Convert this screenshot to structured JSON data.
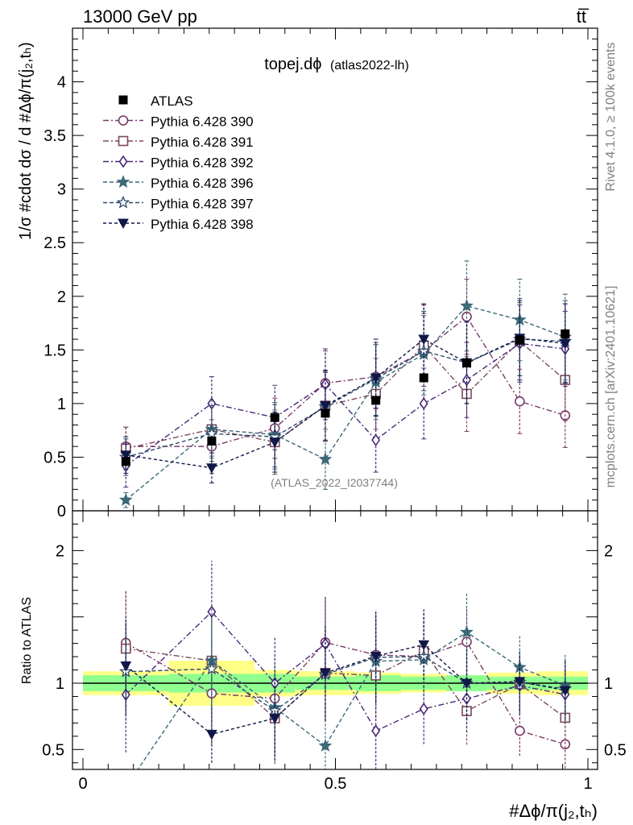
{
  "header": {
    "energy_label": "13000 GeV pp",
    "process_label": "tt̅"
  },
  "main_panel": {
    "title": "topej.dϕ",
    "title_tag": "(atlas2022-lh)",
    "ylabel": "1/σ #cdot dσ / d #Δϕ/π(j₂,tₕ)",
    "analysis_label": "(ATLAS_2022_I2037744)"
  },
  "ratio_panel": {
    "ylabel": "Ratio to ATLAS"
  },
  "xlabel": "#Δϕ/π(j₂,tₕ)",
  "side_labels": {
    "rivet": "Rivet 4.1.0, ≥ 100k events",
    "mcplots": "mcplots.cern.ch [arXiv:2401.10621]"
  },
  "colors": {
    "data": "#000000",
    "band_inner": "#8fff8f",
    "band_outer": "#ffff88",
    "s390": "#7a3a68",
    "s391": "#7a4a5a",
    "s392": "#4a2878",
    "s396": "#3c6878",
    "s397": "#2c4a6a",
    "s398": "#101848"
  },
  "chart_data": {
    "type": "scatter",
    "x_range": [
      0,
      1
    ],
    "main_ylim": [
      0,
      4.5
    ],
    "ratio_ylim": [
      0.35,
      2.3
    ],
    "main_yticks": [
      "0",
      "0.5",
      "1",
      "1.5",
      "2",
      "2.5",
      "3",
      "3.5",
      "4"
    ],
    "ratio_yticks": [
      "0.5",
      "1",
      "2"
    ],
    "xticks": [
      "0",
      "0.5",
      "1"
    ],
    "x": [
      0.085,
      0.255,
      0.38,
      0.48,
      0.58,
      0.675,
      0.76,
      0.865,
      0.955
    ],
    "bin_edges": [
      0,
      0.17,
      0.34,
      0.42,
      0.54,
      0.63,
      0.72,
      0.8,
      0.9,
      1.0
    ],
    "data": {
      "name": "ATLAS",
      "values": [
        0.46,
        0.65,
        0.87,
        0.91,
        1.03,
        1.24,
        1.38,
        1.59,
        1.65
      ],
      "errors": [
        0.02,
        0.03,
        0.03,
        0.04,
        0.04,
        0.04,
        0.05,
        0.05,
        0.05
      ],
      "band_inner": [
        0.06,
        0.07,
        0.07,
        0.05,
        0.06,
        0.05,
        0.06,
        0.05,
        0.05
      ],
      "band_outer": [
        0.09,
        0.17,
        0.1,
        0.09,
        0.08,
        0.07,
        0.06,
        0.08,
        0.09
      ]
    },
    "series": [
      {
        "name": "Pythia 6.428 390",
        "marker": "circle",
        "color": "#7a3a68",
        "dash": "7,3,2,3",
        "values": [
          0.6,
          0.6,
          0.77,
          1.19,
          1.25,
          1.49,
          1.81,
          1.02,
          0.89
        ],
        "errors": [
          0.18,
          0.25,
          0.28,
          0.3,
          0.3,
          0.33,
          0.35,
          0.3,
          0.3
        ]
      },
      {
        "name": "Pythia 6.428 391",
        "marker": "square",
        "color": "#7a4a5a",
        "dash": "7,3,2,3",
        "values": [
          0.58,
          0.76,
          0.64,
          0.98,
          1.09,
          1.54,
          1.09,
          1.58,
          1.22
        ],
        "errors": [
          0.2,
          0.25,
          0.3,
          0.32,
          0.33,
          0.38,
          0.35,
          0.36,
          0.38
        ]
      },
      {
        "name": "Pythia 6.428 392",
        "marker": "diamond",
        "color": "#4a2878",
        "dash": "7,3,2,3",
        "values": [
          0.42,
          1.0,
          0.87,
          1.18,
          0.66,
          1.0,
          1.22,
          1.56,
          1.51
        ],
        "errors": [
          0.2,
          0.25,
          0.3,
          0.33,
          0.3,
          0.33,
          0.35,
          0.36,
          0.35
        ]
      },
      {
        "name": "Pythia 6.428 396",
        "marker": "star",
        "color": "#3c6878",
        "dash": "5,3",
        "values": [
          0.1,
          0.76,
          0.71,
          0.48,
          1.2,
          1.46,
          1.91,
          1.78,
          1.62
        ],
        "errors": [
          0.07,
          0.27,
          0.3,
          0.28,
          0.35,
          0.38,
          0.42,
          0.38,
          0.4
        ]
      },
      {
        "name": "Pythia 6.428 397",
        "marker": "star-open",
        "color": "#2c4a6a",
        "dash": "5,3",
        "values": [
          0.5,
          0.72,
          0.69,
          0.97,
          1.23,
          1.49,
          1.38,
          1.6,
          1.58
        ],
        "errors": [
          0.17,
          0.26,
          0.3,
          0.32,
          0.34,
          0.37,
          0.38,
          0.38,
          0.38
        ]
      },
      {
        "name": "Pythia 6.428 398",
        "marker": "triangle-down",
        "color": "#101848",
        "dash": "4,3",
        "values": [
          0.52,
          0.4,
          0.64,
          0.98,
          1.24,
          1.6,
          1.38,
          1.61,
          1.56
        ],
        "errors": [
          0.17,
          0.14,
          0.28,
          0.33,
          0.36,
          0.33,
          0.38,
          0.35,
          0.37
        ]
      }
    ]
  }
}
